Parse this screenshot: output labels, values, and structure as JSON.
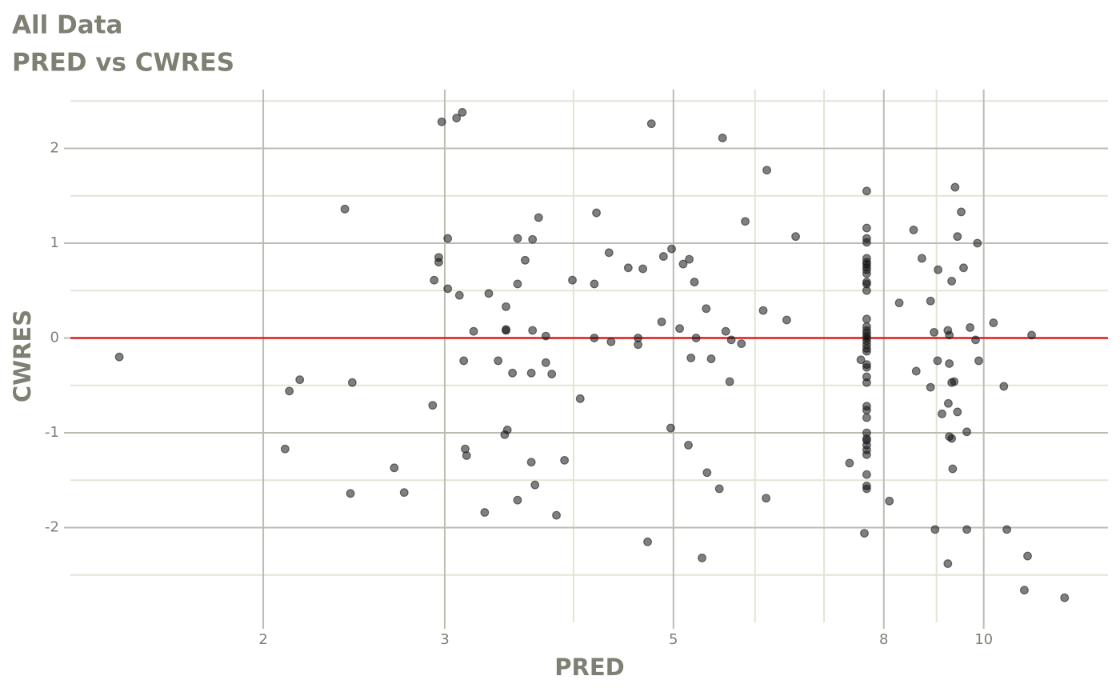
{
  "chart_data": {
    "type": "scatter",
    "title": "All Data",
    "subtitle": "PRED vs CWRES",
    "x_label": "PRED",
    "y_label": "CWRES",
    "x_scale": "log",
    "x": [
      1.45,
      2.1,
      2.12,
      2.17,
      2.4,
      2.43,
      2.44,
      2.68,
      2.74,
      2.92,
      2.93,
      2.96,
      2.96,
      2.98,
      3.02,
      3.02,
      3.08,
      3.1,
      3.12,
      3.13,
      3.14,
      3.15,
      3.2,
      3.28,
      3.31,
      3.38,
      3.43,
      3.44,
      3.44,
      3.44,
      3.45,
      3.49,
      3.53,
      3.53,
      3.53,
      3.59,
      3.64,
      3.64,
      3.65,
      3.65,
      3.67,
      3.7,
      3.76,
      3.76,
      3.81,
      3.85,
      3.92,
      3.99,
      4.06,
      4.19,
      4.19,
      4.21,
      4.33,
      4.35,
      4.52,
      4.62,
      4.62,
      4.67,
      4.72,
      4.76,
      4.87,
      4.89,
      4.97,
      4.98,
      5.07,
      5.11,
      5.17,
      5.18,
      5.2,
      5.24,
      5.26,
      5.33,
      5.38,
      5.39,
      5.44,
      5.54,
      5.58,
      5.62,
      5.67,
      5.69,
      5.82,
      5.87,
      6.11,
      6.15,
      6.16,
      6.44,
      6.57,
      7.41,
      7.6,
      7.66,
      7.7,
      7.7,
      7.7,
      7.7,
      7.7,
      7.7,
      7.7,
      7.7,
      7.7,
      7.7,
      7.7,
      7.7,
      7.7,
      7.7,
      7.7,
      7.7,
      7.7,
      7.7,
      7.7,
      7.7,
      7.7,
      7.7,
      7.7,
      7.7,
      7.7,
      7.7,
      7.7,
      7.7,
      7.7,
      7.7,
      7.7,
      7.7,
      7.7,
      7.7,
      7.7,
      7.7,
      7.7,
      7.7,
      7.7,
      8.1,
      8.28,
      8.55,
      8.6,
      8.71,
      8.88,
      8.88,
      8.97,
      8.95,
      9.02,
      9.03,
      9.11,
      9.23,
      9.23,
      9.24,
      9.26,
      9.26,
      9.26,
      9.31,
      9.31,
      9.31,
      9.33,
      9.36,
      9.38,
      9.43,
      9.43,
      9.51,
      9.56,
      9.63,
      9.63,
      9.7,
      9.82,
      9.86,
      9.89,
      10.22,
      10.46,
      10.53,
      10.95,
      11.03,
      11.13,
      11.98
    ],
    "values": [
      -0.2,
      -1.17,
      -0.56,
      -0.44,
      1.36,
      -1.64,
      -0.47,
      -1.37,
      -1.63,
      -0.71,
      0.61,
      0.85,
      0.8,
      2.28,
      1.05,
      0.52,
      2.32,
      0.45,
      2.38,
      -0.24,
      -1.17,
      -1.24,
      0.07,
      -1.84,
      0.47,
      -0.24,
      -1.02,
      0.33,
      0.09,
      0.08,
      -0.97,
      -0.37,
      1.05,
      0.57,
      -1.71,
      0.82,
      -1.31,
      -0.37,
      1.04,
      0.08,
      -1.55,
      1.27,
      -0.26,
      0.02,
      -0.38,
      -1.87,
      -1.29,
      0.61,
      -0.64,
      0.57,
      0.0,
      1.32,
      0.9,
      -0.04,
      0.74,
      0.0,
      -0.07,
      0.73,
      -2.15,
      2.26,
      0.17,
      0.86,
      -0.95,
      0.94,
      0.1,
      0.78,
      -1.13,
      0.83,
      -0.21,
      0.59,
      0.0,
      -2.32,
      0.31,
      -1.42,
      -0.22,
      -1.59,
      2.11,
      0.07,
      -0.46,
      -0.02,
      -0.06,
      1.23,
      0.29,
      -1.69,
      1.77,
      0.19,
      1.07,
      -1.32,
      -0.23,
      -2.06,
      1.55,
      1.16,
      1.05,
      1.01,
      0.84,
      0.8,
      0.78,
      0.75,
      0.72,
      0.68,
      0.59,
      0.57,
      0.5,
      0.2,
      0.12,
      0.08,
      0.05,
      0.02,
      0.0,
      -0.03,
      -0.07,
      -0.11,
      -0.14,
      -0.28,
      -0.31,
      -0.41,
      -0.47,
      -0.72,
      -0.76,
      -0.84,
      -1.0,
      -1.06,
      -1.08,
      -1.13,
      -1.18,
      -1.23,
      -1.44,
      -1.56,
      -1.59,
      -1.72,
      0.37,
      1.14,
      -0.35,
      0.84,
      -0.52,
      0.39,
      -2.02,
      0.06,
      -0.24,
      0.72,
      -0.8,
      -2.38,
      0.08,
      -0.69,
      0.03,
      -0.27,
      -1.04,
      -1.06,
      0.6,
      -0.47,
      -1.38,
      -0.46,
      1.59,
      -0.78,
      1.07,
      1.33,
      0.74,
      -0.99,
      -2.02,
      0.11,
      -0.02,
      1.0,
      -0.24,
      0.16,
      -0.51,
      -2.02,
      -2.66,
      -2.3,
      0.03,
      -2.74
    ],
    "color": "#000000",
    "xlim": [
      1.3,
      13.2
    ],
    "xticks": [
      2,
      3,
      5,
      8,
      10
    ],
    "xminor": [
      4,
      6,
      7,
      9
    ],
    "ylim": [
      -3.0,
      2.62
    ],
    "yticks": [
      -2,
      -1,
      0,
      1,
      2
    ],
    "yminor": [
      -2.5,
      -1.5,
      -0.5,
      0.5,
      1.5,
      2.5
    ],
    "grid": true,
    "hline": 0,
    "hline_color": "#dd1c1c"
  }
}
